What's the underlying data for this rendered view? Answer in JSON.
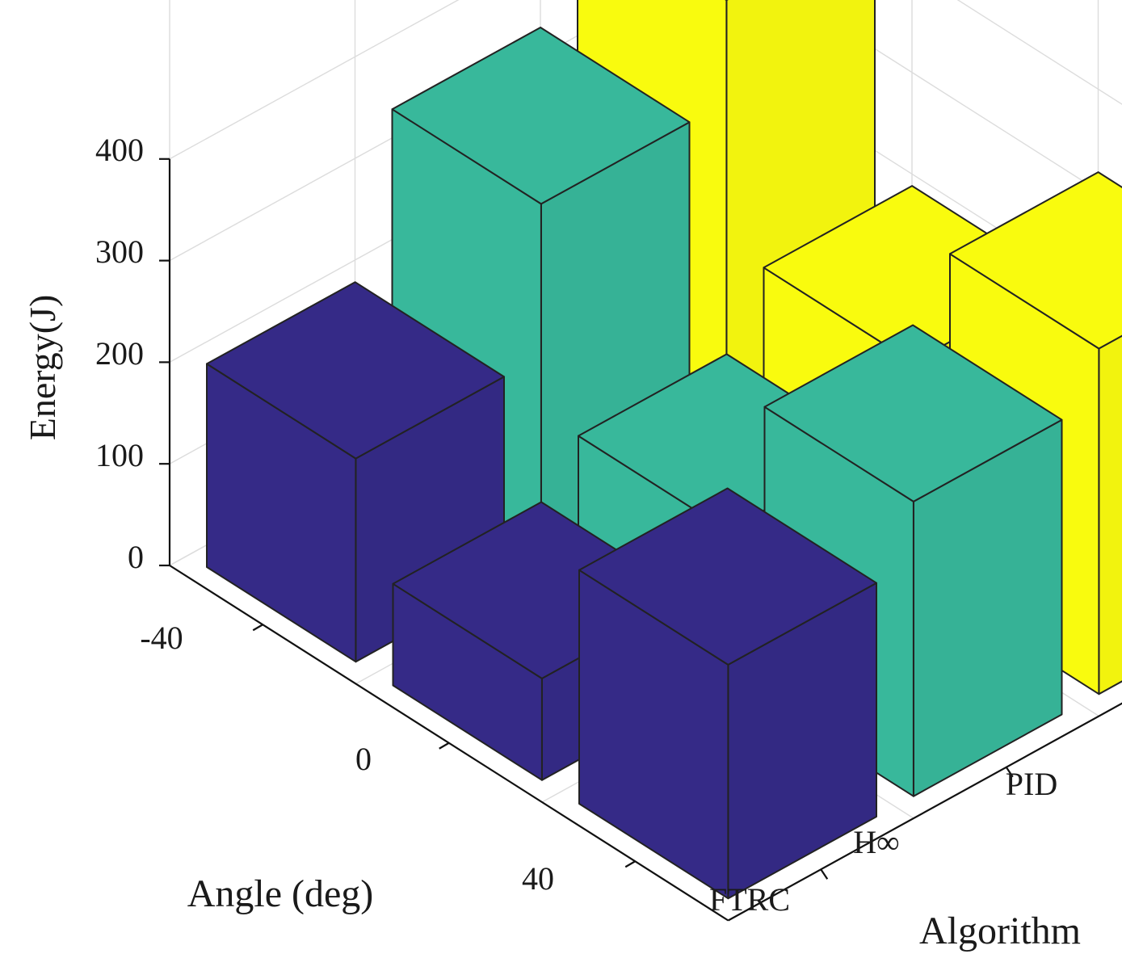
{
  "chart_data": {
    "type": "bar3d",
    "title": "",
    "zlabel": "Energy(J)",
    "xlabel": "Angle (deg)",
    "ylabel": "Algorithm",
    "angles": [
      "-40",
      "0",
      "40"
    ],
    "algorithms": [
      "FTRC",
      "H∞",
      "PID"
    ],
    "zticks": [
      "0",
      "100",
      "200",
      "300",
      "400"
    ],
    "zlim": [
      0,
      400
    ],
    "series": [
      {
        "name": "FTRC",
        "color": "#352a87",
        "values": [
          200,
          100,
          230
        ]
      },
      {
        "name": "H∞",
        "color": "#38b89b",
        "values": [
          350,
          145,
          290
        ]
      },
      {
        "name": "PID",
        "color": "#f9fb0e",
        "values": [
          450,
          210,
          340
        ]
      }
    ]
  }
}
